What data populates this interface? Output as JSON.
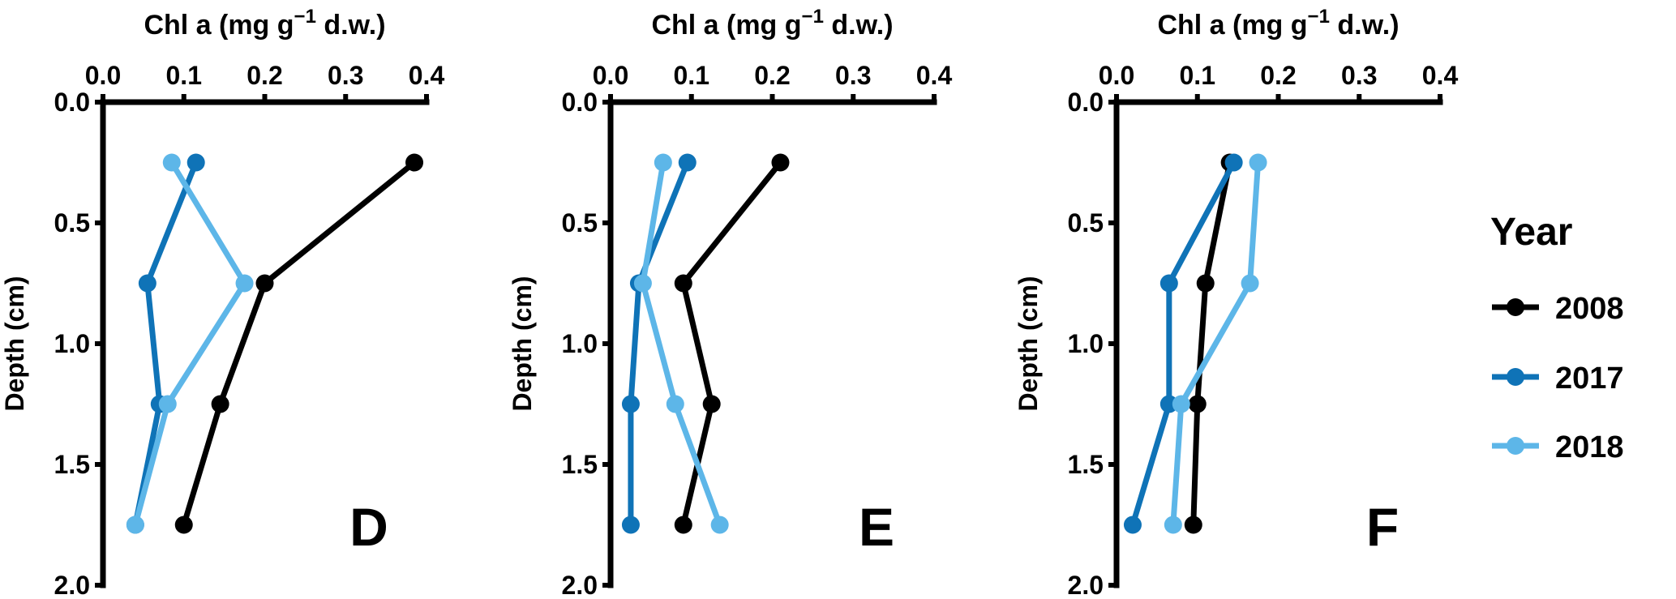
{
  "chart_data": [
    {
      "type": "line",
      "panel_label": "D",
      "xlabel": {
        "main": "Chl a",
        "unit_pre": "(mg g",
        "unit_sup": "−1",
        "unit_post": " d.w.)"
      },
      "ylabel": "Depth (cm)",
      "xlim": [
        0,
        0.4
      ],
      "ylim": [
        0,
        2.0
      ],
      "xticks": [
        "0.0",
        "0.1",
        "0.2",
        "0.3",
        "0.4"
      ],
      "yticks": [
        "0.0",
        "0.5",
        "1.0",
        "1.5",
        "2.0"
      ],
      "y": [
        0.25,
        0.75,
        1.25,
        1.75
      ],
      "series": [
        {
          "name": "2008",
          "x": [
            0.385,
            0.2,
            0.145,
            0.1
          ]
        },
        {
          "name": "2017",
          "x": [
            0.115,
            0.055,
            0.07,
            0.04
          ]
        },
        {
          "name": "2018",
          "x": [
            0.085,
            0.175,
            0.08,
            0.04
          ]
        }
      ]
    },
    {
      "type": "line",
      "panel_label": "E",
      "xlabel": {
        "main": "Chl a",
        "unit_pre": "(mg g",
        "unit_sup": "−1",
        "unit_post": " d.w.)"
      },
      "ylabel": "Depth (cm)",
      "xlim": [
        0,
        0.4
      ],
      "ylim": [
        0,
        2.0
      ],
      "xticks": [
        "0.0",
        "0.1",
        "0.2",
        "0.3",
        "0.4"
      ],
      "yticks": [
        "0.0",
        "0.5",
        "1.0",
        "1.5",
        "2.0"
      ],
      "y": [
        0.25,
        0.75,
        1.25,
        1.75
      ],
      "series": [
        {
          "name": "2008",
          "x": [
            0.21,
            0.09,
            0.125,
            0.09
          ]
        },
        {
          "name": "2017",
          "x": [
            0.095,
            0.035,
            0.025,
            0.025
          ]
        },
        {
          "name": "2018",
          "x": [
            0.065,
            0.04,
            0.08,
            0.135
          ]
        }
      ]
    },
    {
      "type": "line",
      "panel_label": "F",
      "xlabel": {
        "main": "Chl a",
        "unit_pre": "(mg g",
        "unit_sup": "−1",
        "unit_post": " d.w.)"
      },
      "ylabel": "Depth (cm)",
      "xlim": [
        0,
        0.4
      ],
      "ylim": [
        0,
        2.0
      ],
      "xticks": [
        "0.0",
        "0.1",
        "0.2",
        "0.3",
        "0.4"
      ],
      "yticks": [
        "0.0",
        "0.5",
        "1.0",
        "1.5",
        "2.0"
      ],
      "y": [
        0.25,
        0.75,
        1.25,
        1.75
      ],
      "series": [
        {
          "name": "2008",
          "x": [
            0.14,
            0.11,
            0.1,
            0.095
          ]
        },
        {
          "name": "2017",
          "x": [
            0.145,
            0.065,
            0.065,
            0.02
          ]
        },
        {
          "name": "2018",
          "x": [
            0.175,
            0.165,
            0.08,
            0.07
          ]
        }
      ]
    }
  ],
  "legend": {
    "title": "Year",
    "placement": "right",
    "items": [
      {
        "label": "2008",
        "color": "#000000"
      },
      {
        "label": "2017",
        "color": "#0f73b7"
      },
      {
        "label": "2018",
        "color": "#5db6e8"
      }
    ]
  },
  "colors": {
    "2008": "#000000",
    "2017": "#0f73b7",
    "2018": "#5db6e8",
    "axis": "#000000"
  }
}
